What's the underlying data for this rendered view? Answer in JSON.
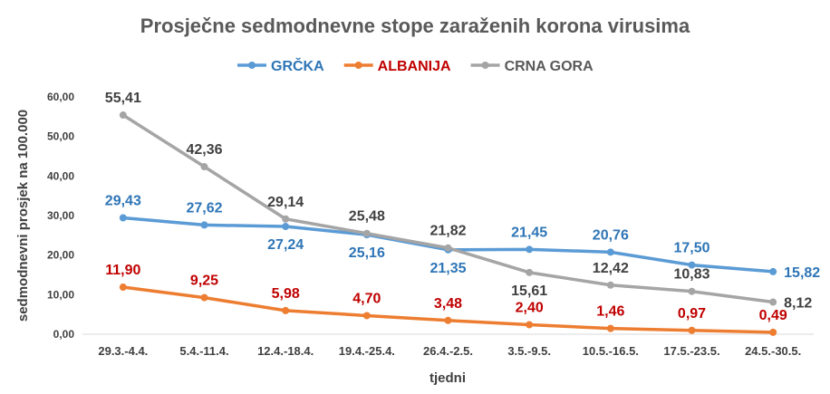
{
  "chart_data": {
    "type": "line",
    "title": "Prosječne sedmodnevne stope zaraženih korona virusima",
    "xlabel": "tjedni",
    "ylabel": "sedmodnevni prosjek na 100.000",
    "ylim": [
      0,
      60
    ],
    "yticks": [
      "0,00",
      "10,00",
      "20,00",
      "30,00",
      "40,00",
      "50,00",
      "60,00"
    ],
    "grid": false,
    "legend_position": "top",
    "categories": [
      "29.3.-4.4.",
      "5.4.-11.4.",
      "12.4.-18.4.",
      "19.4.-25.4.",
      "26.4.-2.5.",
      "3.5.-9.5.",
      "10.5.-16.5.",
      "17.5.-23.5.",
      "24.5.-30.5."
    ],
    "series": [
      {
        "name": "GRČKA",
        "color": "#5B9BD5",
        "label_color": "#2E75B6",
        "values": [
          29.43,
          27.62,
          27.24,
          25.16,
          21.35,
          21.45,
          20.76,
          17.5,
          15.82
        ],
        "labels": [
          "29,43",
          "27,62",
          "27,24",
          "25,16",
          "21,35",
          "21,45",
          "20,76",
          "17,50",
          "15,82"
        ],
        "label_pos": [
          "above",
          "above",
          "below",
          "below",
          "below",
          "above",
          "above",
          "above",
          "right"
        ]
      },
      {
        "name": "ALBANIJA",
        "color": "#ED7D31",
        "label_color": "#C00000",
        "values": [
          11.9,
          9.25,
          5.98,
          4.7,
          3.48,
          2.4,
          1.46,
          0.97,
          0.49
        ],
        "labels": [
          "11,90",
          "9,25",
          "5,98",
          "4,70",
          "3,48",
          "2,40",
          "1,46",
          "0,97",
          "0,49"
        ],
        "label_pos": [
          "above",
          "above",
          "above",
          "above",
          "above",
          "above",
          "above",
          "above",
          "above"
        ]
      },
      {
        "name": "CRNA GORA",
        "color": "#A5A5A5",
        "label_color": "#404040",
        "values": [
          55.41,
          42.36,
          29.14,
          25.48,
          21.82,
          15.61,
          12.42,
          10.83,
          8.12
        ],
        "labels": [
          "55,41",
          "42,36",
          "29,14",
          "25,48",
          "21,82",
          "15,61",
          "12,42",
          "10,83",
          "8,12"
        ],
        "label_pos": [
          "above",
          "above",
          "above",
          "above",
          "above",
          "below",
          "above",
          "above",
          "right"
        ]
      }
    ]
  }
}
